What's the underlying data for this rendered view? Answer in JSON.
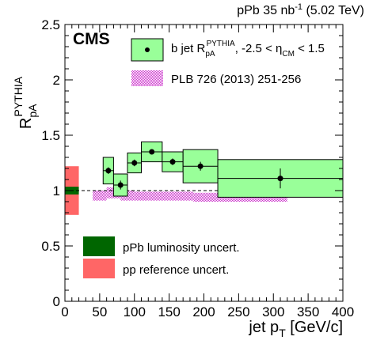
{
  "chart_data": {
    "type": "scatter",
    "top_label": {
      "text": "pPb 35 nb",
      "sup": "-1",
      "tail": " (5.02 TeV)"
    },
    "experiment_label": "CMS",
    "ylabel": {
      "main": "R",
      "sub": "pA",
      "sup": "PYTHIA"
    },
    "xlabel": {
      "main": "jet p",
      "sub": "T",
      "tail": " [GeV/c]"
    },
    "xlim": [
      0,
      400
    ],
    "ylim": [
      0,
      2.5
    ],
    "x_ticks": [
      0,
      50,
      100,
      150,
      200,
      250,
      300,
      350,
      400
    ],
    "y_ticks": [
      0,
      0.5,
      1,
      1.5,
      2,
      2.5
    ],
    "reference_line": 1,
    "series": [
      {
        "name": "b jet R_pA^PYTHIA, -2.5 < η_CM < 1.5",
        "legend": {
          "pre": "b jet R",
          "sub1": "pA",
          "sup1": "PYTHIA",
          "mid": ", -2.5 < η",
          "sub2": "CM",
          "post": " < 1.5"
        },
        "marker": "circle",
        "box_color": "#99ff99",
        "points": [
          {
            "x": 62.5,
            "y": 1.18,
            "x_low": 55,
            "x_high": 70,
            "sys": 0.12,
            "stat": 0.03
          },
          {
            "x": 80,
            "y": 1.05,
            "x_low": 70,
            "x_high": 90,
            "sys": 0.1,
            "stat": 0.04
          },
          {
            "x": 100,
            "y": 1.25,
            "x_low": 90,
            "x_high": 110,
            "sys": 0.09,
            "stat": 0.03
          },
          {
            "x": 125,
            "y": 1.35,
            "x_low": 110,
            "x_high": 140,
            "sys": 0.09,
            "stat": 0.02
          },
          {
            "x": 155,
            "y": 1.26,
            "x_low": 140,
            "x_high": 170,
            "sys": 0.09,
            "stat": 0.03
          },
          {
            "x": 195,
            "y": 1.22,
            "x_low": 170,
            "x_high": 220,
            "sys": 0.15,
            "stat": 0.04
          },
          {
            "x": 310,
            "y": 1.11,
            "x_low": 220,
            "x_high": 400,
            "sys": 0.17,
            "stat": 0.09
          }
        ]
      },
      {
        "name": "PLB 726 (2013) 251-256",
        "legend_text": "PLB 726 (2013) 251-256",
        "color": "#cc33cc",
        "band": [
          {
            "x_low": 40,
            "x_high": 60,
            "y_low": 0.91,
            "y_high": 1.0
          },
          {
            "x_low": 60,
            "x_high": 80,
            "y_low": 0.93,
            "y_high": 1.03
          },
          {
            "x_low": 80,
            "x_high": 100,
            "y_low": 0.91,
            "y_high": 1.0
          },
          {
            "x_low": 100,
            "x_high": 120,
            "y_low": 0.91,
            "y_high": 0.99
          },
          {
            "x_low": 120,
            "x_high": 150,
            "y_low": 0.91,
            "y_high": 0.99
          },
          {
            "x_low": 150,
            "x_high": 185,
            "y_low": 0.91,
            "y_high": 0.99
          },
          {
            "x_low": 185,
            "x_high": 220,
            "y_low": 0.9,
            "y_high": 0.98
          },
          {
            "x_low": 220,
            "x_high": 320,
            "y_low": 0.9,
            "y_high": 0.99
          }
        ]
      }
    ],
    "uncertainty_boxes": [
      {
        "name": "pp reference uncert.",
        "color": "#ff6666",
        "x_low": 0,
        "x_high": 20,
        "y_low": 0.78,
        "y_high": 1.22
      },
      {
        "name": "pPb luminosity uncert.",
        "color": "#006600",
        "x_low": 0,
        "x_high": 20,
        "y_low": 0.965,
        "y_high": 1.035
      }
    ],
    "lower_legend": [
      {
        "label": "pPb luminosity uncert.",
        "color": "#006600"
      },
      {
        "label": "pp reference uncert.",
        "color": "#ff6666"
      }
    ]
  }
}
